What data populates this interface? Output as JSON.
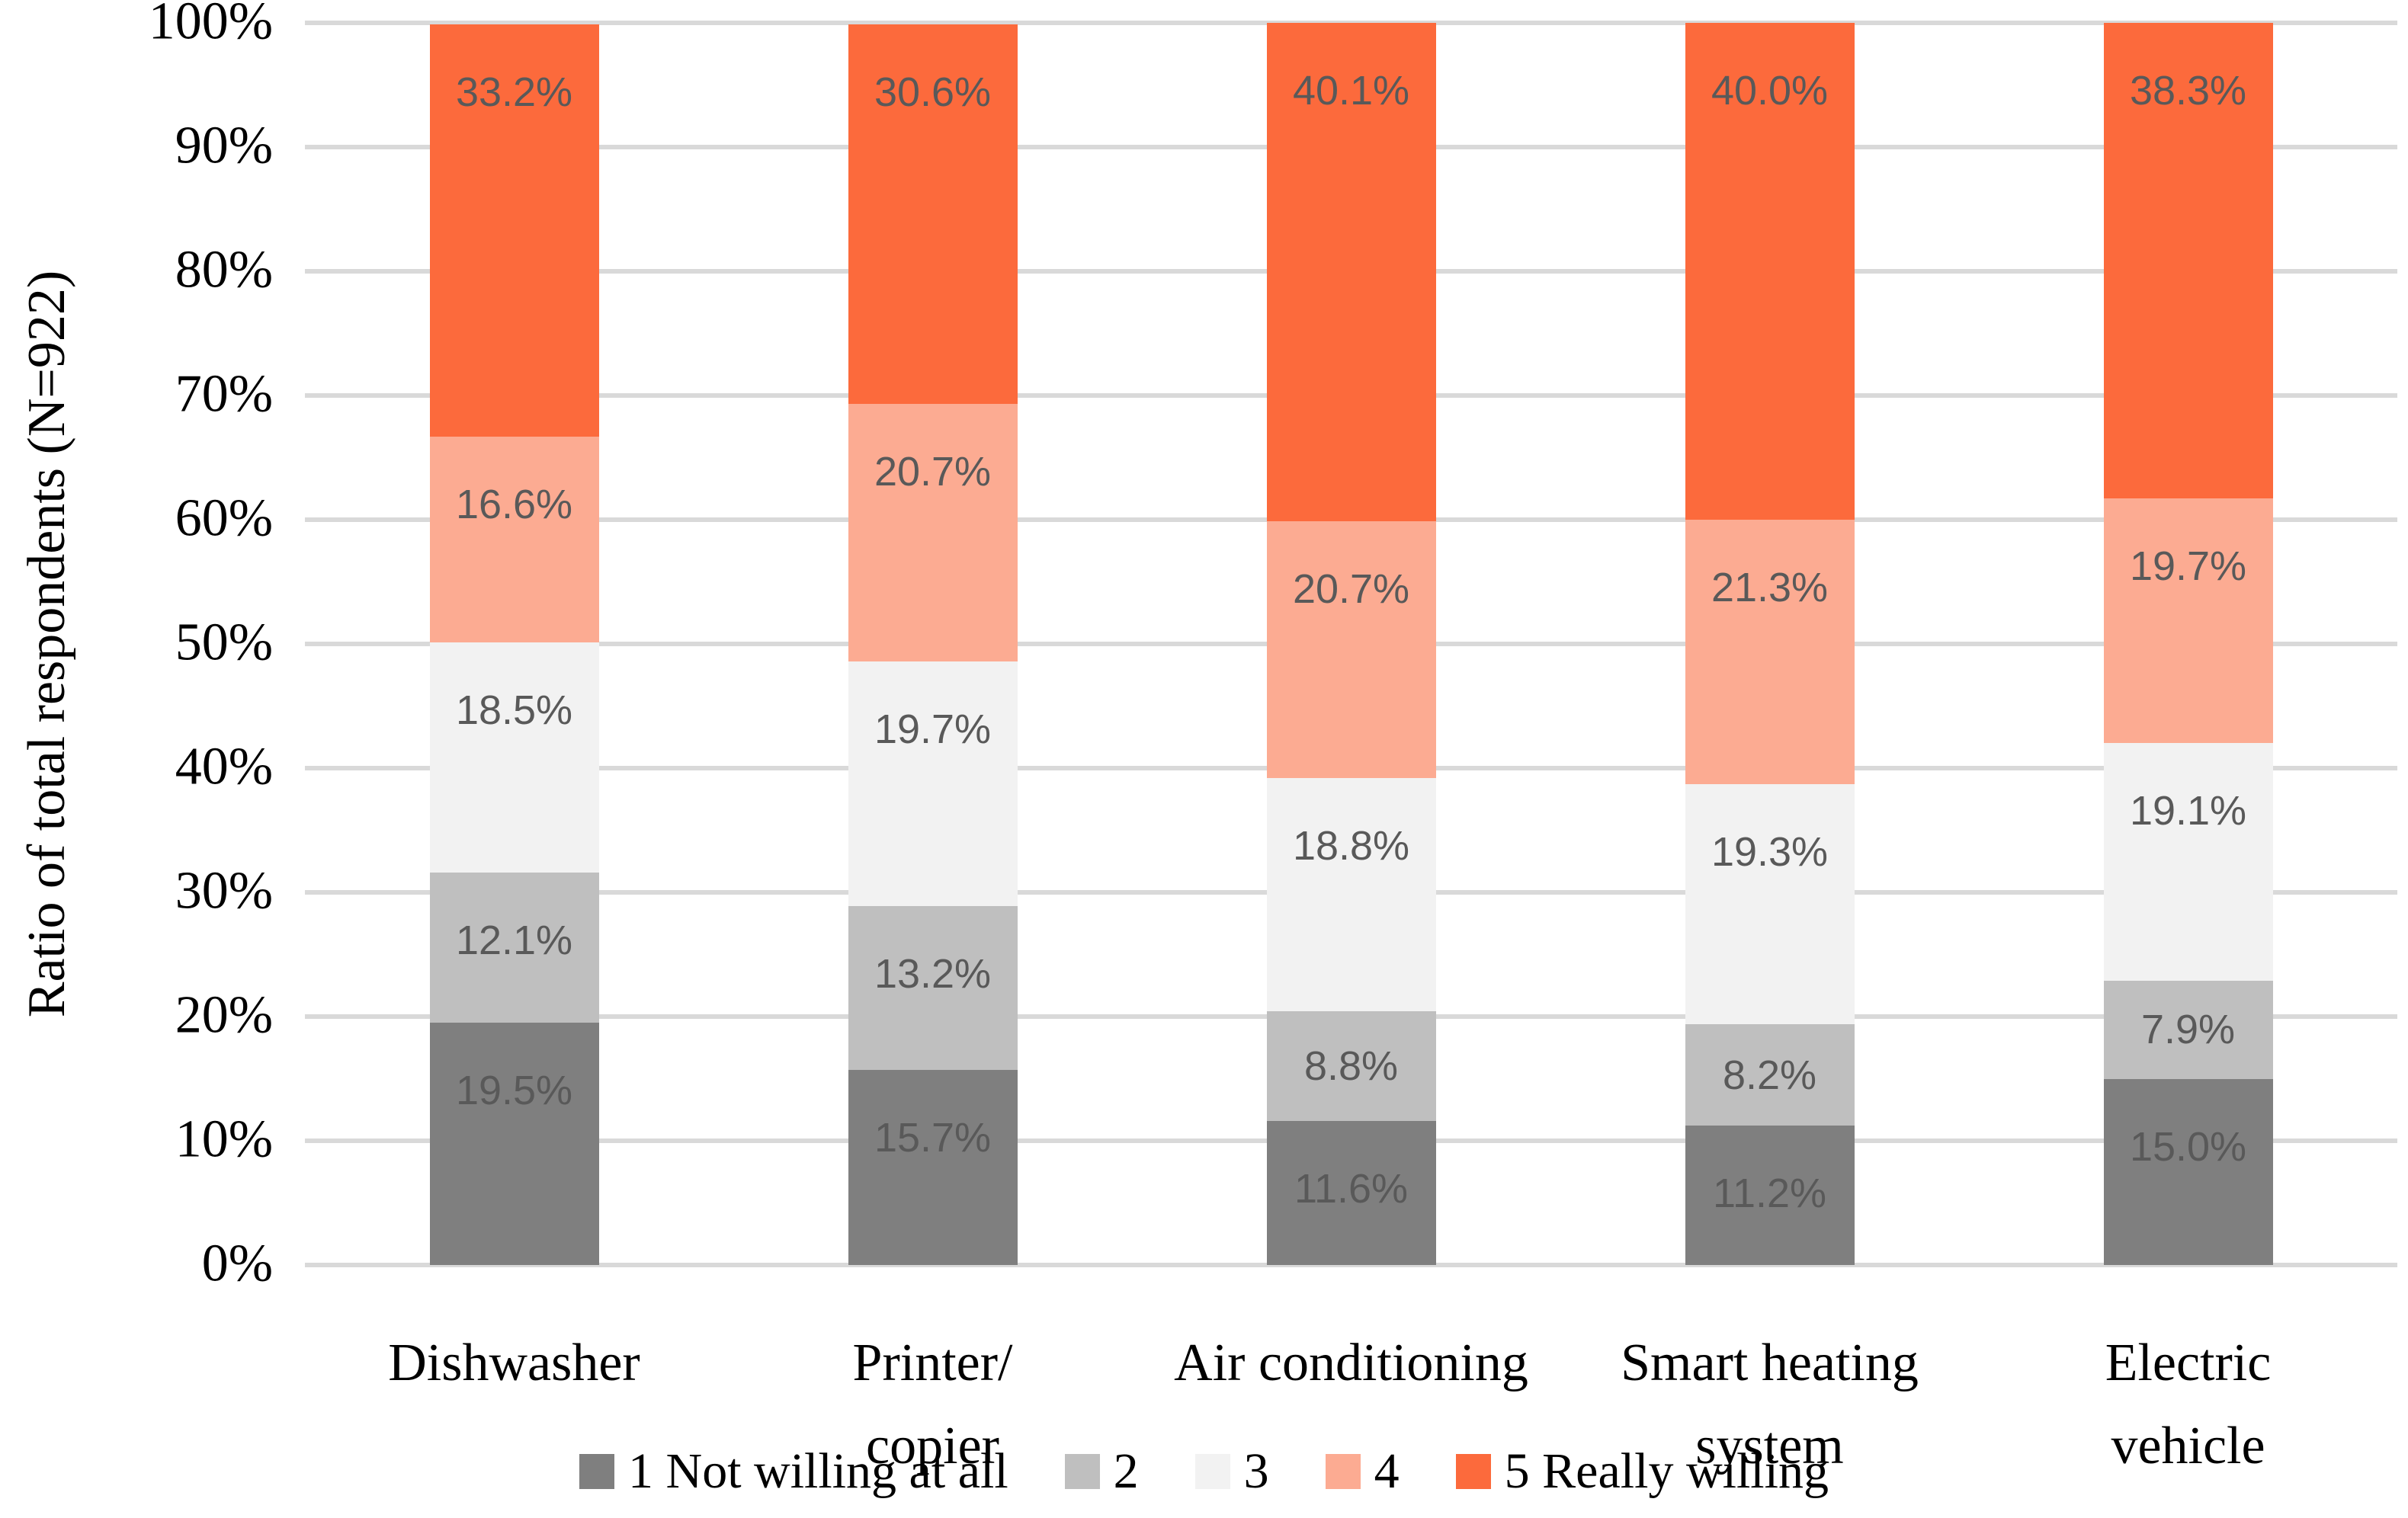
{
  "chart_data": {
    "type": "bar",
    "stacked": true,
    "orientation": "vertical",
    "title": "",
    "ylabel": "Ratio of total respondents (N=922)",
    "xlabel": "",
    "ylim": [
      0,
      100
    ],
    "ytick_step": 10,
    "ytick_suffix": "%",
    "grid": "horizontal",
    "legend_position": "bottom",
    "categories": [
      "Dishwasher",
      "Printer/copier",
      "Air conditioning",
      "Smart heating system",
      "Electric vehicle"
    ],
    "category_label_lines": [
      [
        "Dishwasher"
      ],
      [
        "Printer/",
        "copier"
      ],
      [
        "Air conditioning"
      ],
      [
        "Smart heating",
        "system"
      ],
      [
        "Electric",
        "vehicle"
      ]
    ],
    "series": [
      {
        "name": "1 Not willing at all",
        "color": "#7F7F7F",
        "values": [
          19.5,
          15.7,
          11.6,
          11.2,
          15.0
        ]
      },
      {
        "name": "2",
        "color": "#BFBFBF",
        "values": [
          12.1,
          13.2,
          8.8,
          8.2,
          7.9
        ]
      },
      {
        "name": "3",
        "color": "#F2F2F2",
        "values": [
          18.5,
          19.7,
          18.8,
          19.3,
          19.1
        ]
      },
      {
        "name": "4",
        "color": "#FCAB92",
        "values": [
          16.6,
          20.7,
          20.7,
          21.3,
          19.7
        ]
      },
      {
        "name": "5 Really willing",
        "color": "#FC6A3C",
        "values": [
          33.2,
          30.6,
          40.1,
          40.0,
          38.3
        ]
      }
    ],
    "data_label_suffix": "%",
    "data_label_decimals": 1,
    "data_label_color": "#595959",
    "gridline_color": "#D9D9D9",
    "axis_text_color": "#000000",
    "background_color": "#FFFFFF"
  }
}
